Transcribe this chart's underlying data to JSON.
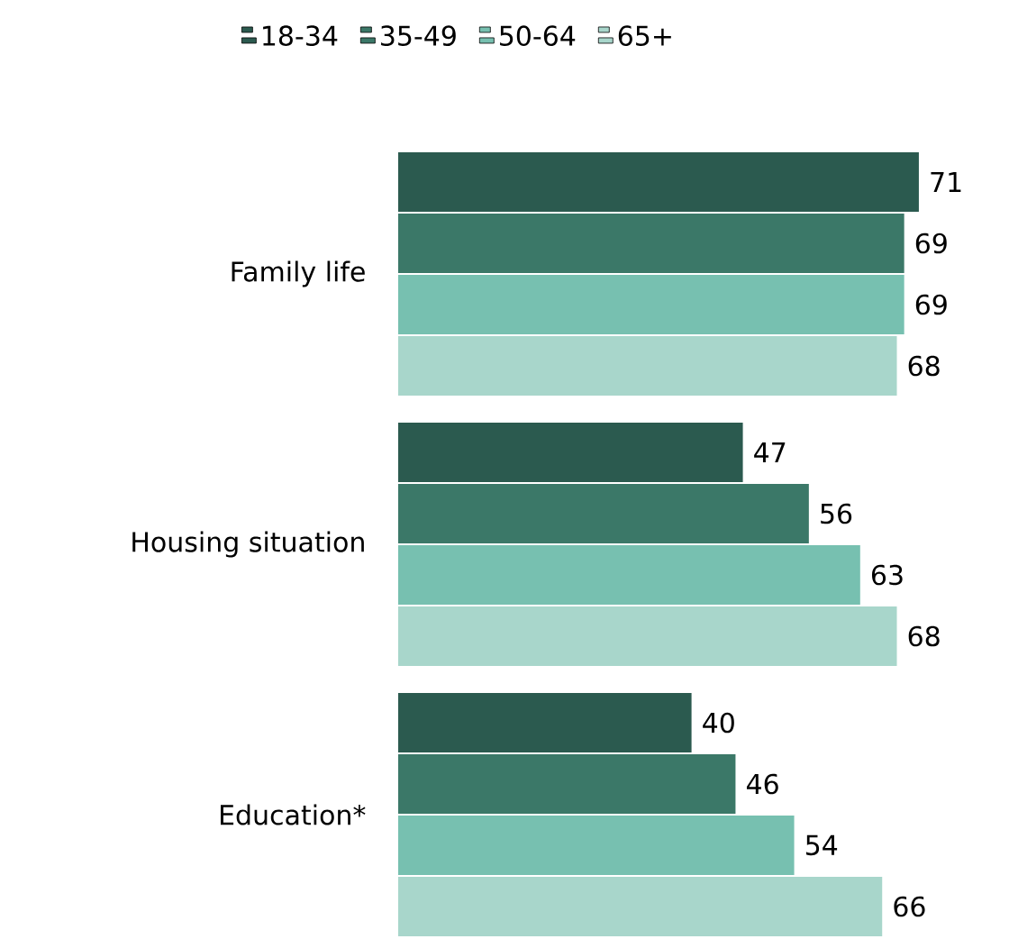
{
  "chart_data": {
    "type": "bar",
    "orientation": "horizontal",
    "categories": [
      "Family life",
      "Housing situation",
      "Education*"
    ],
    "series": [
      {
        "name": "18-34",
        "color": "#2b5a4f",
        "values": [
          71,
          47,
          40
        ]
      },
      {
        "name": "35-49",
        "color": "#3b7868",
        "values": [
          69,
          56,
          46
        ]
      },
      {
        "name": "50-64",
        "color": "#77c0b0",
        "values": [
          69,
          63,
          54
        ]
      },
      {
        "name": "65+",
        "color": "#a8d6cb",
        "values": [
          68,
          68,
          66
        ]
      }
    ],
    "data_labels": true,
    "legend": "top",
    "tick_labels": "y"
  }
}
